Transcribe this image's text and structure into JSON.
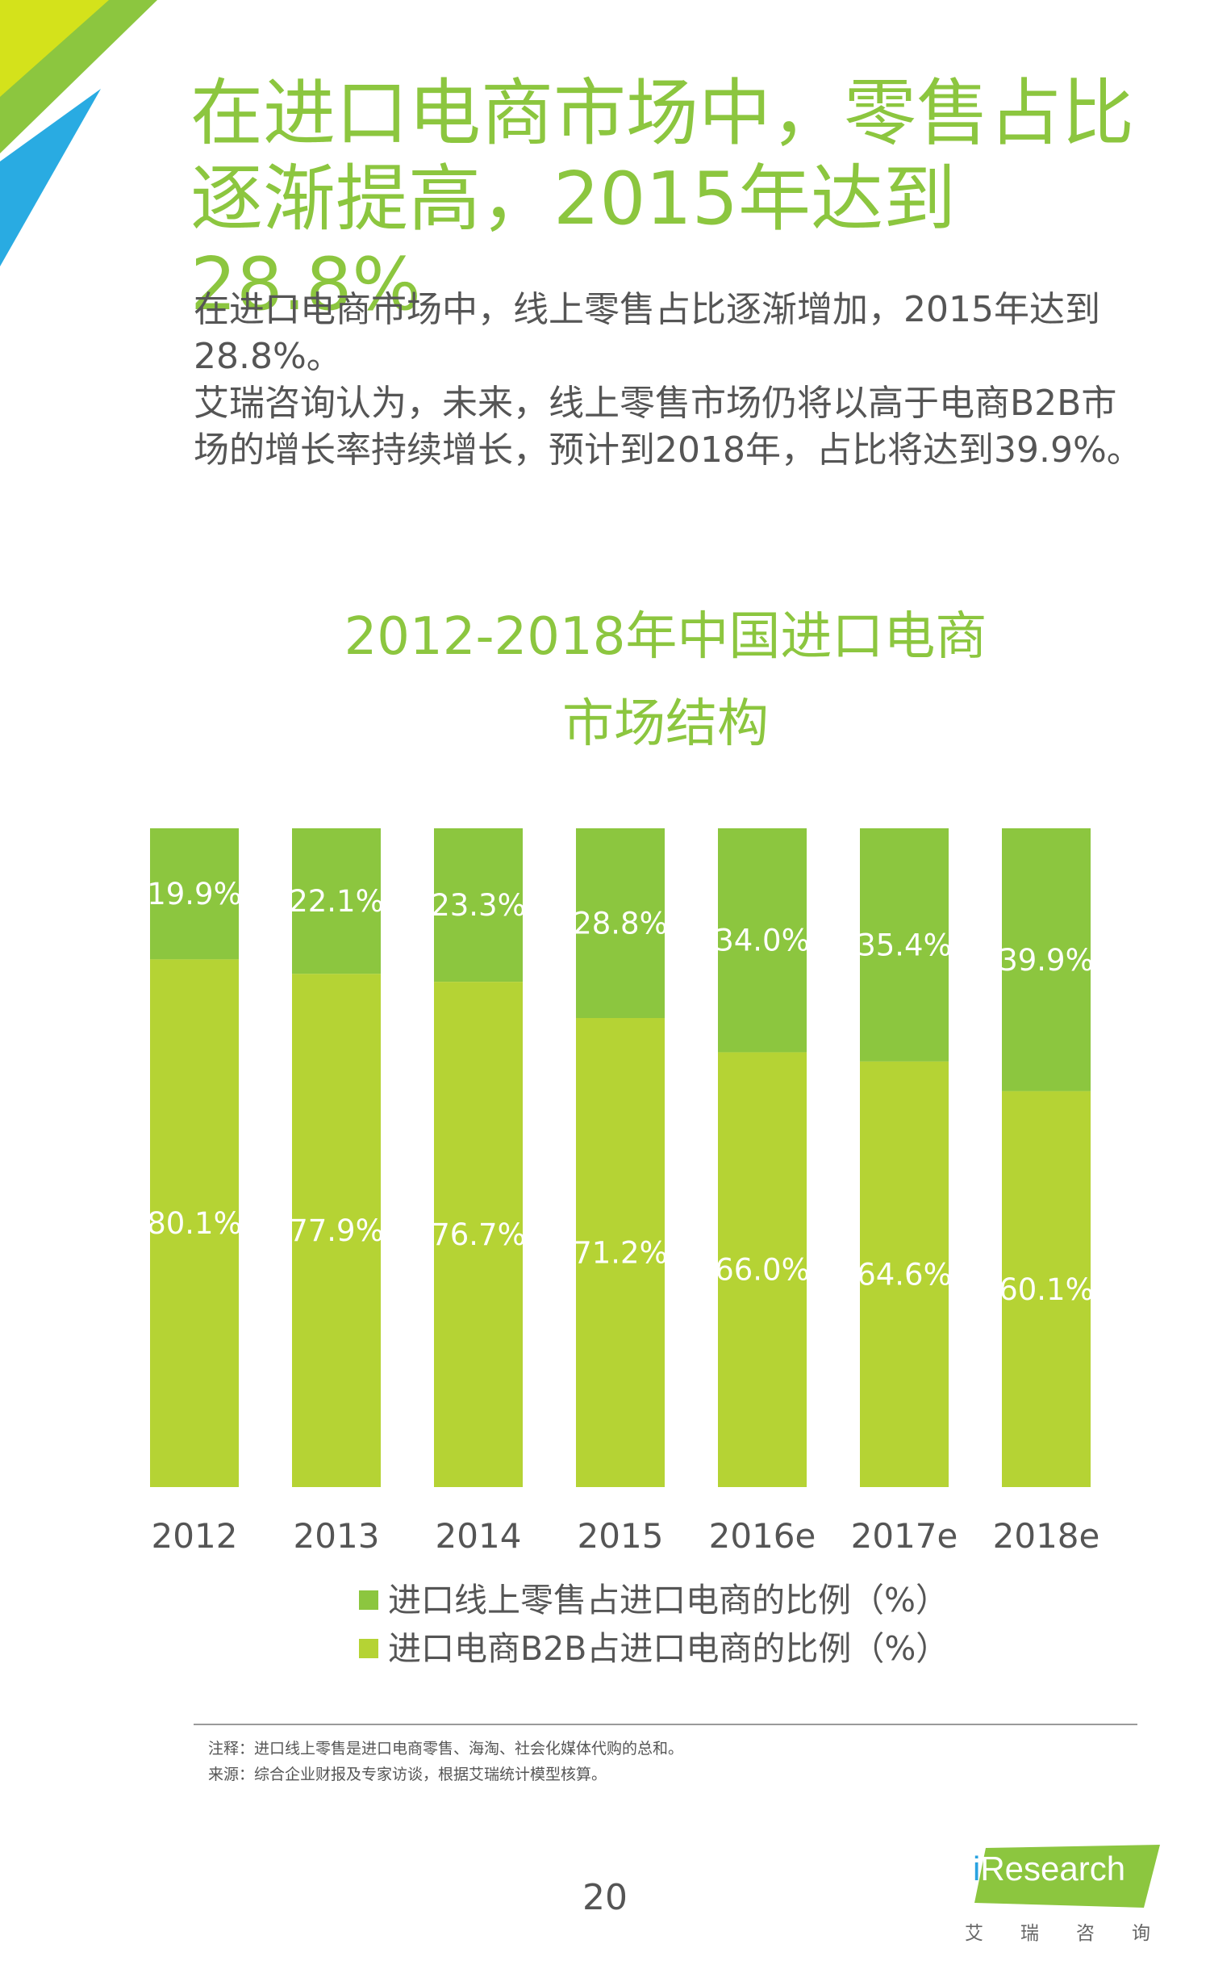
{
  "page": {
    "headline": [
      "在进口电商市场中，零售占比",
      "逐渐提高，2015年达到28.8%"
    ],
    "intro": [
      "在进口电商市场中，线上零售占比逐渐增加，2015年达到28.8%。",
      "艾瑞咨询认为，未来，线上零售市场仍将以高于电商B2B市场的增长率持续增长，预计到2018年，占比将达到39.9%。"
    ],
    "notes": {
      "note": "注释：进口线上零售是进口电商零售、海淘、社会化媒体代购的总和。",
      "source": "来源：综合企业财报及专家访谈，根据艾瑞统计模型核算。"
    },
    "page_number": "20",
    "logo": {
      "wordmark_i": "i",
      "wordmark_rest": "Research",
      "subtitle": [
        "艾",
        "瑞",
        "咨",
        "询"
      ]
    },
    "colors": {
      "accent": "#8cc63f",
      "retail": "#8cc63f",
      "b2b": "#b5d334",
      "corner_green": "#8cc63f",
      "corner_yellow": "#d4e21b",
      "corner_blue": "#29abe2"
    }
  },
  "chart_data": {
    "type": "bar",
    "stacked": true,
    "title": [
      "2012-2018年中国进口电商",
      "市场结构"
    ],
    "categories": [
      "2012",
      "2013",
      "2014",
      "2015",
      "2016e",
      "2017e",
      "2018e"
    ],
    "series": [
      {
        "name": "进口线上零售占进口电商的比例（%）",
        "values": [
          19.9,
          22.1,
          23.3,
          28.8,
          34.0,
          35.4,
          39.9
        ],
        "labels": [
          "19.9%",
          "22.1%",
          "23.3%",
          "28.8%",
          "34.0%",
          "35.4%",
          "39.9%"
        ],
        "color": "#8cc63f",
        "position": "top"
      },
      {
        "name": "进口电商B2B占进口电商的比例（%）",
        "values": [
          80.1,
          77.9,
          76.7,
          71.2,
          66.0,
          64.6,
          60.1
        ],
        "labels": [
          "80.1%",
          "77.9%",
          "76.7%",
          "71.2%",
          "66.0%",
          "64.6%",
          "60.1%"
        ],
        "color": "#b5d334",
        "position": "bottom"
      }
    ],
    "ylim": [
      0,
      100
    ],
    "grid": false,
    "legend": "bottom-center"
  }
}
